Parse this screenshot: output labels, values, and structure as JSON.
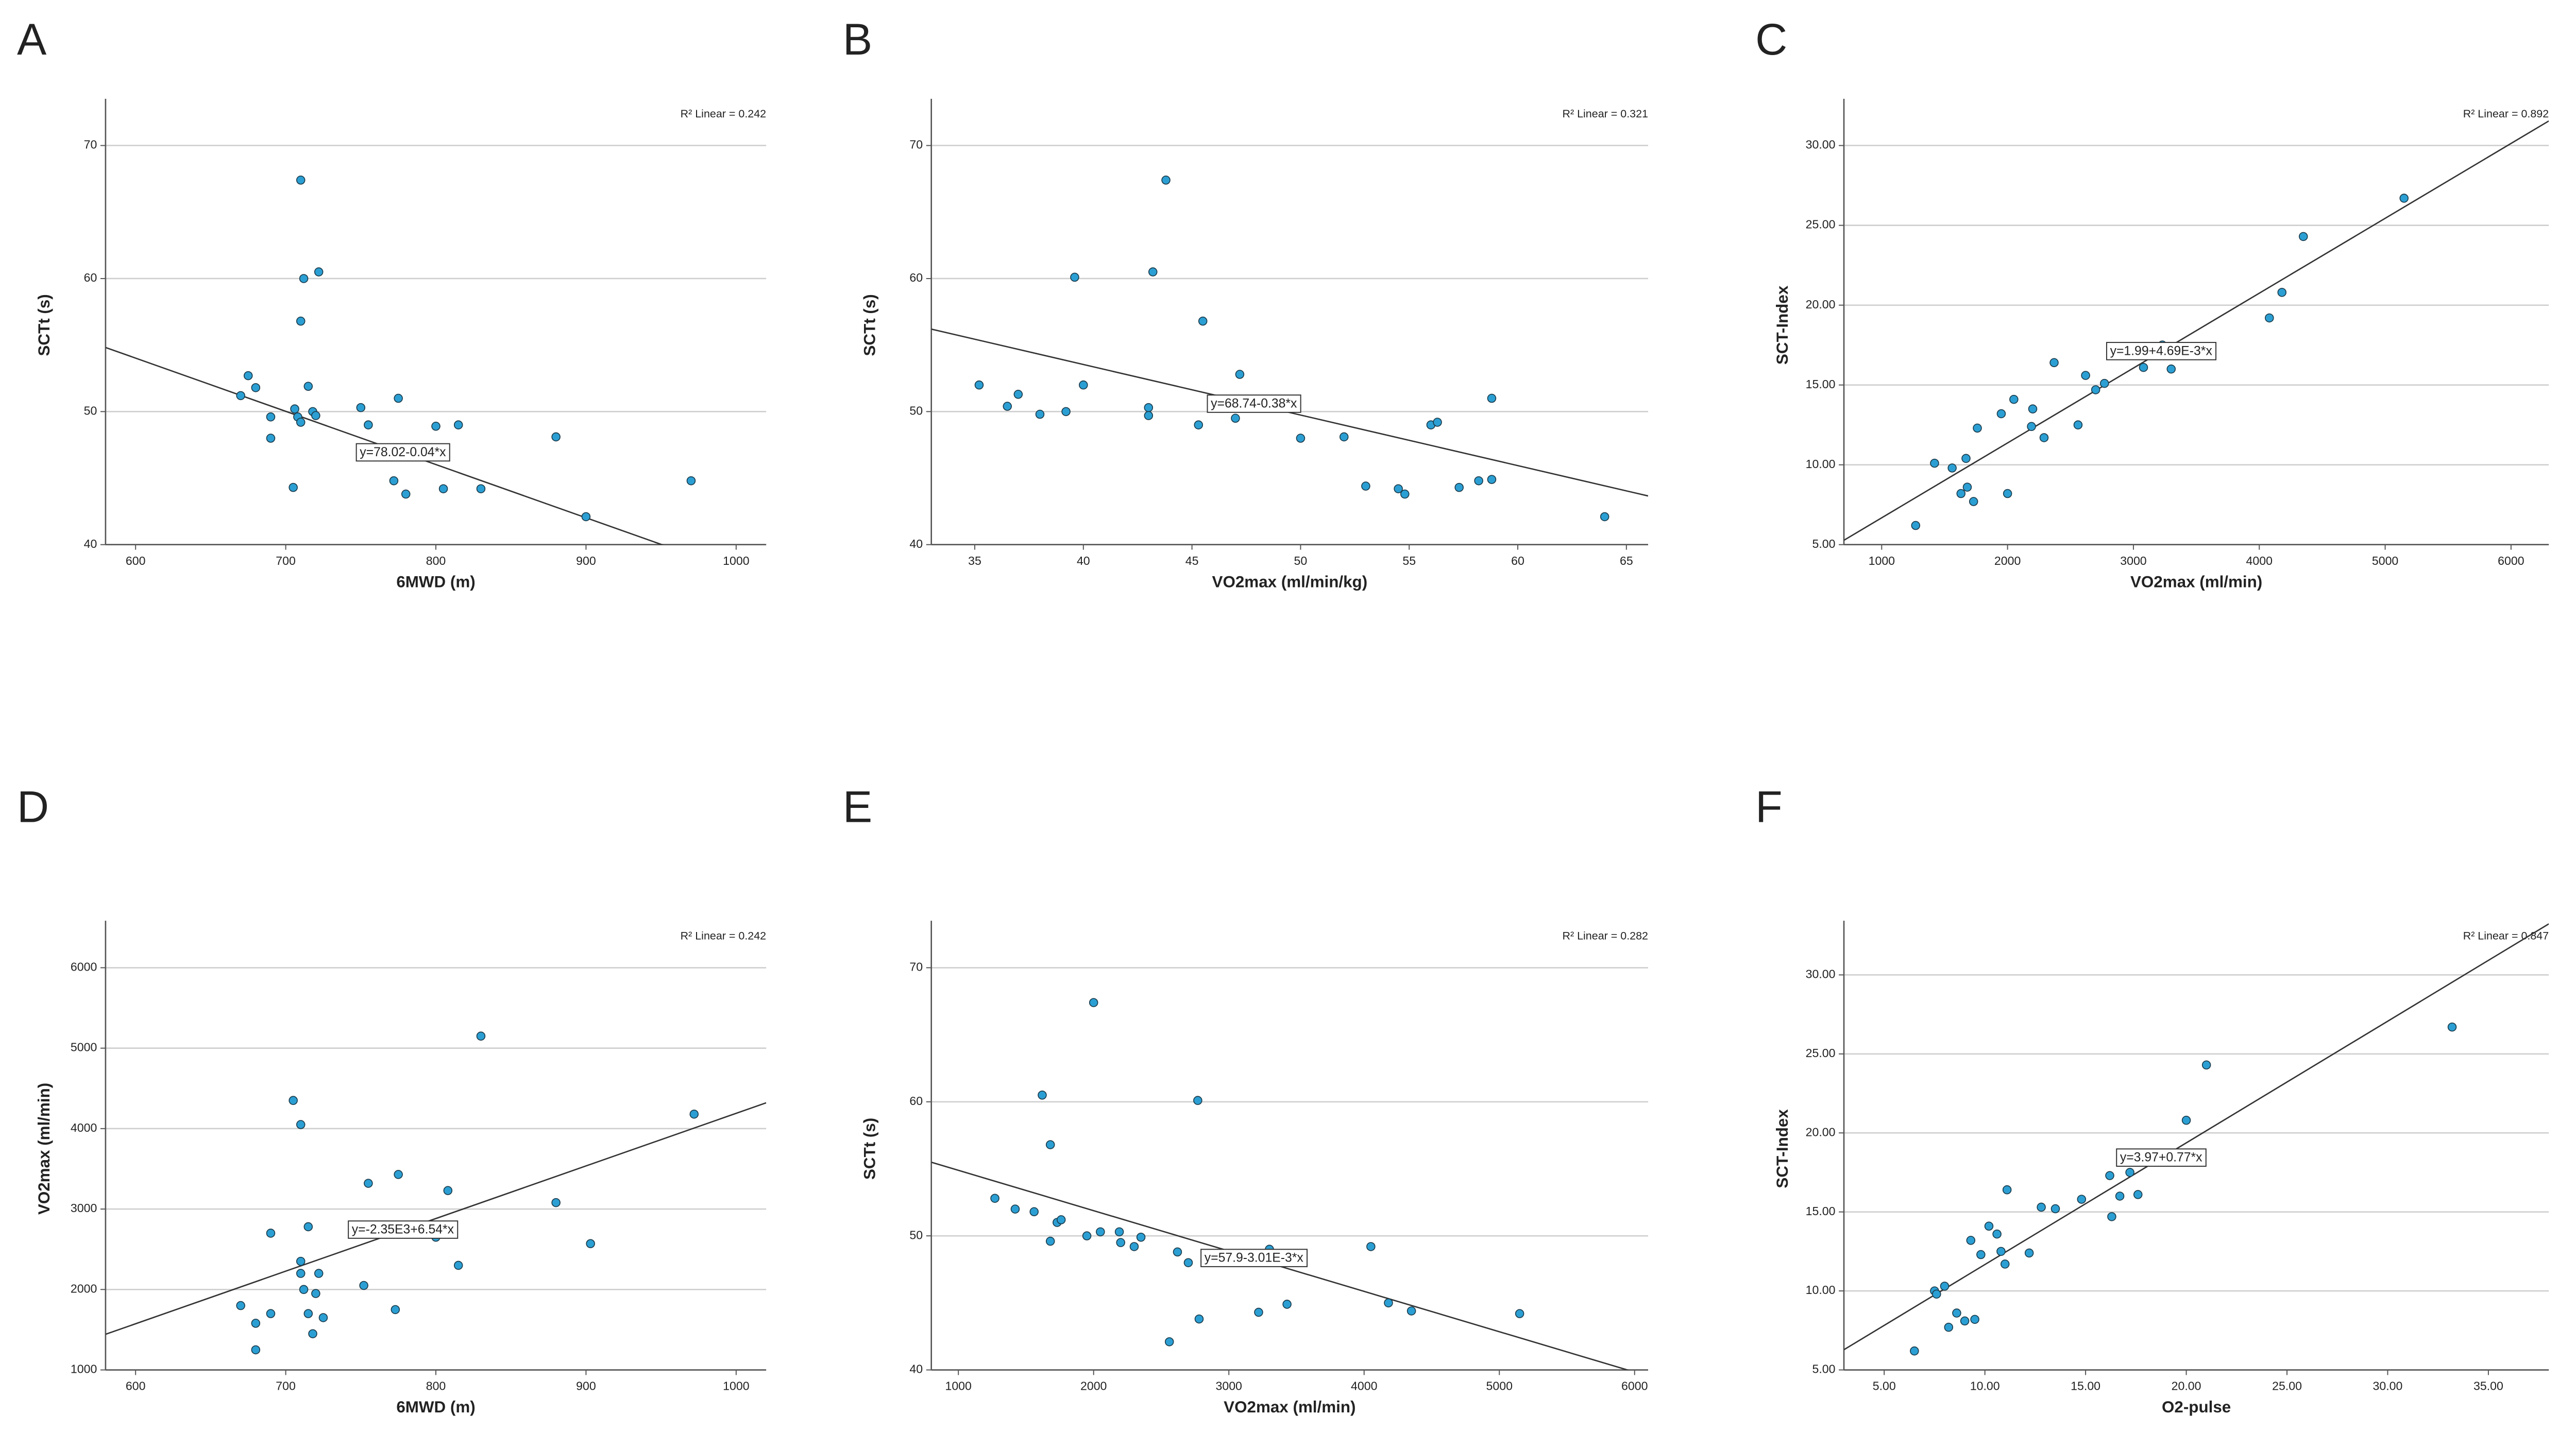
{
  "chart_data": [
    {
      "type": "scatter",
      "title": "A",
      "x_label": "6MWD (m)",
      "y_label": "SCTt (s)",
      "color": "#2b9fd3",
      "grid": true,
      "x": [
        670,
        675,
        680,
        690,
        690,
        705,
        706,
        708,
        710,
        710,
        712,
        710,
        715,
        718,
        720,
        722,
        750,
        755,
        772,
        775,
        780,
        800,
        805,
        815,
        830,
        880,
        900,
        970
      ],
      "y": [
        51.2,
        52.7,
        51.8,
        49.6,
        48,
        44.3,
        50.2,
        49.6,
        49.2,
        67.4,
        60,
        56.8,
        51.9,
        50,
        49.7,
        60.5,
        50.3,
        49,
        44.8,
        51,
        43.8,
        48.9,
        44.2,
        49,
        44.2,
        48.1,
        42.1,
        44.8
      ],
      "xlim": [
        580,
        1020
      ],
      "ylim": [
        40,
        73
      ],
      "xticks": [
        600,
        700,
        800,
        900,
        1000
      ],
      "yticks": [
        40,
        50,
        60,
        70
      ],
      "fit": {
        "intercept": 78.02,
        "slope": -0.04,
        "label": "y=78.02-0.04*x"
      },
      "annotation": "R² Linear = 0.242"
    },
    {
      "type": "scatter",
      "title": "B",
      "x_label": "VO2max (ml/min/kg)",
      "y_label": "SCTt (s)",
      "color": "#2b9fd3",
      "grid": true,
      "x": [
        35.2,
        36.5,
        37,
        38,
        39.2,
        39.6,
        40,
        43,
        43,
        43.2,
        43.8,
        45.3,
        45.5,
        47,
        47.2,
        50,
        52,
        53,
        54.5,
        54.8,
        56,
        56.3,
        57.3,
        58.2,
        58.8,
        58.8,
        64
      ],
      "y": [
        52,
        50.4,
        51.3,
        49.8,
        50,
        60.1,
        52,
        50.3,
        49.7,
        60.5,
        67.4,
        49,
        56.8,
        49.5,
        52.8,
        48,
        48.1,
        44.4,
        44.2,
        43.8,
        49,
        49.2,
        44.3,
        44.8,
        44.9,
        51,
        42.1
      ],
      "xlim": [
        33,
        66
      ],
      "ylim": [
        40,
        73
      ],
      "xticks": [
        35,
        40,
        45,
        50,
        55,
        60,
        65
      ],
      "yticks": [
        40,
        50,
        60,
        70
      ],
      "fit": {
        "intercept": 68.74,
        "slope": -0.38,
        "label": "y=68.74-0.38*x"
      },
      "annotation": "R² Linear = 0.321"
    },
    {
      "type": "scatter",
      "title": "C",
      "x_label": "VO2max (ml/min)",
      "y_label": "SCT-Index",
      "color": "#2b9fd3",
      "grid": true,
      "x": [
        1270,
        1420,
        1560,
        1630,
        1670,
        1680,
        1730,
        1760,
        1950,
        2000,
        2050,
        2190,
        2200,
        2290,
        2370,
        2560,
        2620,
        2700,
        2770,
        3080,
        3230,
        3300,
        3430,
        4080,
        4180,
        4350,
        5150
      ],
      "y": [
        6.2,
        10.1,
        9.8,
        8.2,
        10.4,
        8.6,
        7.7,
        12.3,
        13.2,
        8.2,
        14.1,
        12.4,
        13.5,
        11.7,
        16.4,
        12.5,
        15.6,
        14.7,
        15.1,
        16.1,
        17.5,
        16,
        17.3,
        19.2,
        20.8,
        24.3,
        26.7
      ],
      "xlim": [
        700,
        6300
      ],
      "ylim": [
        5,
        32.5
      ],
      "xticks": [
        1000,
        2000,
        3000,
        4000,
        5000,
        6000
      ],
      "yticks": [
        {
          "value": 5,
          "label": "5.00"
        },
        {
          "value": 10,
          "label": "10.00"
        },
        {
          "value": 15,
          "label": "15.00"
        },
        {
          "value": 20,
          "label": "20.00"
        },
        {
          "value": 25,
          "label": "25.00"
        },
        {
          "value": 30,
          "label": "30.00"
        }
      ],
      "fit": {
        "intercept": 1.99,
        "slope": 0.00469,
        "label": "y=1.99+4.69E-3*x"
      },
      "annotation": "R² Linear = 0.892"
    },
    {
      "type": "scatter",
      "title": "D",
      "x_label": "6MWD (m)",
      "y_label": "VO2max (ml/min)",
      "color": "#2b9fd3",
      "grid": true,
      "x": [
        670,
        680,
        680,
        690,
        690,
        705,
        710,
        710,
        710,
        712,
        715,
        715,
        718,
        720,
        722,
        725,
        752,
        755,
        773,
        775,
        800,
        808,
        815,
        830,
        880,
        903,
        972
      ],
      "y": [
        1800,
        1250,
        1580,
        1700,
        2700,
        4350,
        4050,
        2350,
        2200,
        2000,
        1700,
        2780,
        1450,
        1950,
        2200,
        1650,
        2050,
        3320,
        1750,
        3430,
        2650,
        3230,
        2300,
        5150,
        3080,
        2570,
        4180
      ],
      "xlim": [
        580,
        1020
      ],
      "ylim": [
        1000,
        6500
      ],
      "xticks": [
        600,
        700,
        800,
        900,
        1000
      ],
      "yticks": [
        1000,
        2000,
        3000,
        4000,
        5000,
        6000
      ],
      "fit": {
        "intercept": -2350,
        "slope": 6.54,
        "label": "y=-2.35E3+6.54*x"
      },
      "annotation": "R² Linear = 0.242"
    },
    {
      "type": "scatter",
      "title": "E",
      "x_label": "VO2max (ml/min)",
      "y_label": "SCTt (s)",
      "color": "#2b9fd3",
      "grid": true,
      "x": [
        1270,
        1420,
        1560,
        1620,
        1680,
        1680,
        1730,
        1760,
        1950,
        2000,
        2050,
        2190,
        2200,
        2300,
        2350,
        2560,
        2620,
        2700,
        2770,
        2780,
        3220,
        3300,
        3430,
        4050,
        4180,
        4350,
        5150
      ],
      "y": [
        52.8,
        52,
        51.8,
        60.5,
        56.8,
        49.6,
        51,
        51.2,
        50,
        67.4,
        50.3,
        50.3,
        49.5,
        49.2,
        49.9,
        42.1,
        48.8,
        48,
        60.1,
        43.8,
        44.3,
        49,
        44.9,
        49.2,
        45,
        44.4,
        44.2
      ],
      "xlim": [
        800,
        6100
      ],
      "ylim": [
        40,
        73
      ],
      "xticks": [
        1000,
        2000,
        3000,
        4000,
        5000,
        6000
      ],
      "yticks": [
        40,
        50,
        60,
        70
      ],
      "fit": {
        "intercept": 57.9,
        "slope": -0.00301,
        "label": "y=57.9-3.01E-3*x"
      },
      "annotation": "R² Linear = 0.282"
    },
    {
      "type": "scatter",
      "title": "F",
      "x_label": "O2-pulse",
      "y_label": "SCT-Index",
      "color": "#2b9fd3",
      "grid": true,
      "x": [
        6.5,
        7.5,
        7.6,
        8,
        8.2,
        8.6,
        9,
        9.3,
        9.5,
        9.8,
        10.2,
        10.6,
        10.8,
        11,
        11.1,
        12.2,
        12.8,
        13.5,
        14.8,
        16.2,
        16.3,
        16.7,
        17.2,
        17.6,
        20,
        21,
        33.2
      ],
      "y": [
        6.2,
        10,
        9.8,
        10.3,
        7.7,
        8.6,
        8.1,
        13.2,
        8.2,
        12.3,
        14.1,
        13.6,
        12.5,
        11.7,
        16.4,
        12.4,
        15.3,
        15.2,
        15.8,
        17.3,
        14.7,
        16,
        17.5,
        16.1,
        20.8,
        24.3,
        26.7
      ],
      "xlim": [
        3,
        38
      ],
      "ylim": [
        5,
        33
      ],
      "xticks": [
        {
          "value": 5,
          "label": "5.00"
        },
        {
          "value": 10,
          "label": "10.00"
        },
        {
          "value": 15,
          "label": "15.00"
        },
        {
          "value": 20,
          "label": "20.00"
        },
        {
          "value": 25,
          "label": "25.00"
        },
        {
          "value": 30,
          "label": "30.00"
        },
        {
          "value": 35,
          "label": "35.00"
        }
      ],
      "yticks": [
        {
          "value": 5,
          "label": "5.00"
        },
        {
          "value": 10,
          "label": "10.00"
        },
        {
          "value": 15,
          "label": "15.00"
        },
        {
          "value": 20,
          "label": "20.00"
        },
        {
          "value": 25,
          "label": "25.00"
        },
        {
          "value": 30,
          "label": "30.00"
        }
      ],
      "fit": {
        "intercept": 3.97,
        "slope": 0.77,
        "label": "y=3.97+0.77*x"
      },
      "annotation": "R² Linear = 0.847"
    }
  ]
}
